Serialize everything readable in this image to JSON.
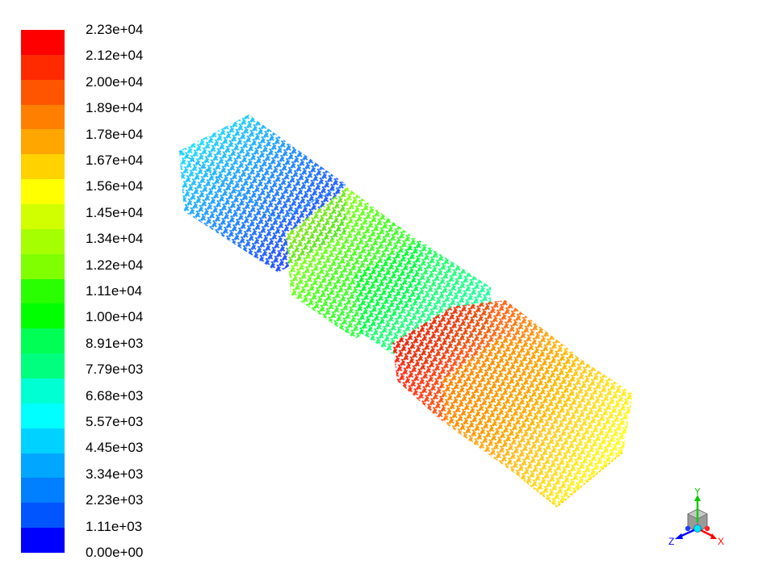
{
  "legend": {
    "labels": [
      "2.23e+04",
      "2.12e+04",
      "2.00e+04",
      "1.89e+04",
      "1.78e+04",
      "1.67e+04",
      "1.56e+04",
      "1.45e+04",
      "1.34e+04",
      "1.22e+04",
      "1.11e+04",
      "1.00e+04",
      "8.91e+03",
      "7.79e+03",
      "6.68e+03",
      "5.57e+03",
      "4.45e+03",
      "3.34e+03",
      "2.23e+03",
      "1.11e+03",
      "0.00e+00"
    ],
    "colors": [
      "#ff0000",
      "#ff2a00",
      "#ff5500",
      "#ff7f00",
      "#ffa600",
      "#ffd200",
      "#ffff00",
      "#d2ff00",
      "#a6ff00",
      "#7fff00",
      "#2aff00",
      "#00ff00",
      "#00ff55",
      "#00ff7f",
      "#00ffd2",
      "#00ffff",
      "#00d2ff",
      "#00a6ff",
      "#007fff",
      "#0055ff",
      "#0000ff"
    ]
  },
  "axes": {
    "x_label": "X",
    "y_label": "Y",
    "z_label": "Z",
    "x_color": "#ff0000",
    "y_color": "#00cc00",
    "z_color": "#0000ff"
  }
}
